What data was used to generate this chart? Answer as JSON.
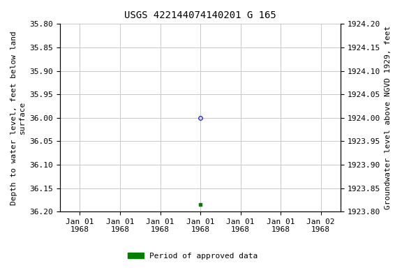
{
  "title": "USGS 422144074140201 G 165",
  "point1_x_num": 0.5,
  "point1_y": 36.0,
  "point1_color": "#0000cc",
  "point1_marker_size": 4,
  "point2_x_num": 0.5,
  "point2_y": 36.185,
  "point2_color": "#008000",
  "point2_marker_size": 3,
  "ylim_min": 35.8,
  "ylim_max": 36.2,
  "yticks_left": [
    35.8,
    35.85,
    35.9,
    35.95,
    36.0,
    36.05,
    36.1,
    36.15,
    36.2
  ],
  "yticks_right_labels": [
    "1924.20",
    "1924.15",
    "1924.10",
    "1924.05",
    "1924.00",
    "1923.95",
    "1923.90",
    "1923.85",
    "1923.80"
  ],
  "ylabel_left": "Depth to water level, feet below land\nsurface",
  "ylabel_right": "Groundwater level above NGVD 1929, feet",
  "xtick_positions": [
    0,
    1,
    2,
    3,
    4,
    5,
    6
  ],
  "xtick_labels": [
    "Jan 01\n1968",
    "Jan 01\n1968",
    "Jan 01\n1968",
    "Jan 01\n1968",
    "Jan 01\n1968",
    "Jan 01\n1968",
    "Jan 02\n1968"
  ],
  "xlim_min": -0.5,
  "xlim_max": 6.5,
  "legend_label": "Period of approved data",
  "legend_color": "#008000",
  "background_color": "#ffffff",
  "grid_color": "#c8c8c8",
  "title_fontsize": 10,
  "label_fontsize": 8,
  "tick_fontsize": 8
}
